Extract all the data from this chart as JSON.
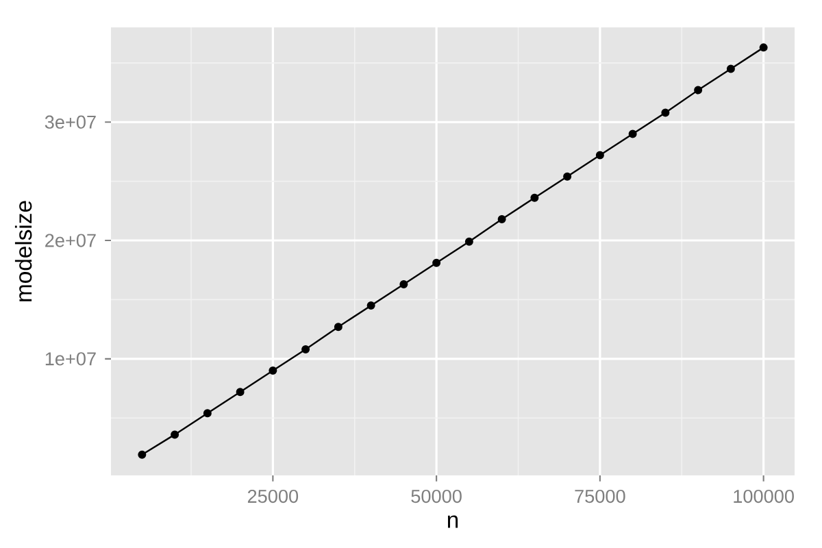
{
  "chart_data": {
    "type": "line",
    "xlabel": "n",
    "ylabel": "modelsize",
    "x": [
      5000,
      10000,
      15000,
      20000,
      25000,
      30000,
      35000,
      40000,
      45000,
      50000,
      55000,
      60000,
      65000,
      70000,
      75000,
      80000,
      85000,
      90000,
      95000,
      100000
    ],
    "series": [
      {
        "color": "#000000",
        "values": [
          1900000,
          3600000,
          5400000,
          7200000,
          9000000,
          10800000,
          12700000,
          14500000,
          16300000,
          18100000,
          19900000,
          21800000,
          23600000,
          25400000,
          27200000,
          29000000,
          30800000,
          32700000,
          34500000,
          36300000
        ]
      }
    ],
    "xlim": [
      250,
      104750
    ],
    "ylim": [
      150000,
      38000000
    ],
    "xticks": [
      25000,
      50000,
      75000,
      100000
    ],
    "yticks": [
      {
        "value": 10000000,
        "label": "1e+07"
      },
      {
        "value": 20000000,
        "label": "2e+07"
      },
      {
        "value": 30000000,
        "label": "3e+07"
      }
    ],
    "grid": true,
    "marker": "circle",
    "line_style": "solid"
  }
}
